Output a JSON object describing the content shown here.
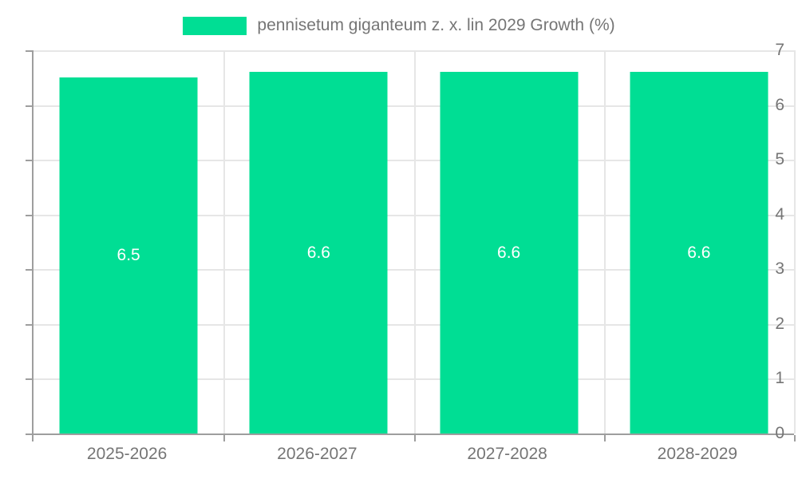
{
  "legend": {
    "label": "pennisetum giganteum z. x. lin 2029 Growth (%)",
    "swatch_color": "#00de94"
  },
  "chart_data": {
    "type": "bar",
    "title": "pennisetum giganteum z. x. lin 2029 Growth (%)",
    "categories": [
      "2025-2026",
      "2026-2027",
      "2027-2028",
      "2028-2029"
    ],
    "values": [
      6.5,
      6.6,
      6.6,
      6.6
    ],
    "value_labels": [
      "6.5",
      "6.6",
      "6.6",
      "6.6"
    ],
    "xlabel": "",
    "ylabel": "",
    "ylim": [
      0,
      7
    ],
    "yticks": [
      0,
      1,
      2,
      3,
      4,
      5,
      6,
      7
    ],
    "grid": true,
    "legend_position": "top",
    "bar_color": "#00de94",
    "bar_label_color": "#ffffff",
    "axis_color": "#9e9e9e",
    "gridline_color": "#e6e6e6",
    "tick_text_color": "#757575"
  }
}
